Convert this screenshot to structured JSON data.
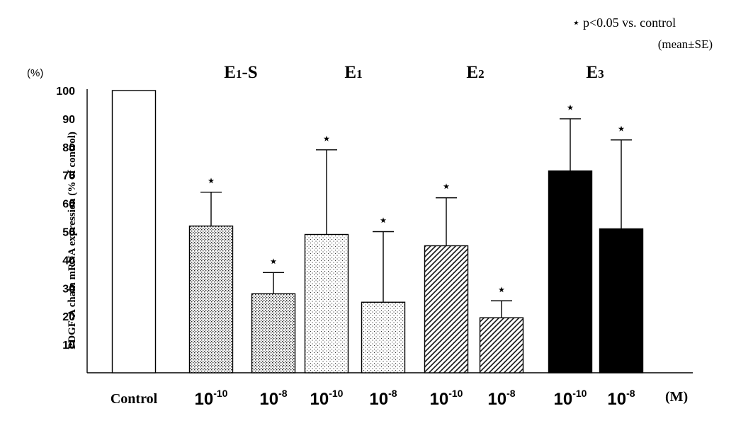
{
  "chart_data": {
    "type": "bar",
    "title": "",
    "ylabel": "PDGF-A chain mRNA expression (% of control)",
    "y_unit": "(%)",
    "x_unit": "(M)",
    "ylim": [
      0,
      100
    ],
    "yticks": [
      10,
      20,
      30,
      40,
      50,
      60,
      70,
      80,
      90,
      100
    ],
    "legend_note": "p<0.05 vs. control",
    "legend_marker": "⋆",
    "stat_note": "(mean±SE)",
    "groups": [
      {
        "name": "",
        "label": "Control",
        "bars": [
          {
            "dose": "",
            "value": 100,
            "error": 0,
            "significant": false,
            "fill": "white"
          }
        ]
      },
      {
        "name": "E1-S",
        "base": "E",
        "sub": "1",
        "suffix": "-S",
        "bars": [
          {
            "dose": "10-10",
            "base": "10",
            "exp": "-10",
            "value": 52,
            "error": 12,
            "significant": true,
            "fill": "dense-dots"
          },
          {
            "dose": "10-8",
            "base": "10",
            "exp": "-8",
            "value": 28,
            "error": 7.5,
            "significant": true,
            "fill": "dense-dots"
          }
        ]
      },
      {
        "name": "E1",
        "base": "E",
        "sub": "1",
        "suffix": "",
        "bars": [
          {
            "dose": "10-10",
            "base": "10",
            "exp": "-10",
            "value": 49,
            "error": 30,
            "significant": true,
            "fill": "sparse-dots"
          },
          {
            "dose": "10-8",
            "base": "10",
            "exp": "-8",
            "value": 25,
            "error": 25,
            "significant": true,
            "fill": "sparse-dots"
          }
        ]
      },
      {
        "name": "E2",
        "base": "E",
        "sub": "2",
        "suffix": "",
        "bars": [
          {
            "dose": "10-10",
            "base": "10",
            "exp": "-10",
            "value": 45,
            "error": 17,
            "significant": true,
            "fill": "hatch"
          },
          {
            "dose": "10-8",
            "base": "10",
            "exp": "-8",
            "value": 19.5,
            "error": 6,
            "significant": true,
            "fill": "hatch"
          }
        ]
      },
      {
        "name": "E3",
        "base": "E",
        "sub": "3",
        "suffix": "",
        "bars": [
          {
            "dose": "10-10",
            "base": "10",
            "exp": "-10",
            "value": 71.5,
            "error": 18.5,
            "significant": true,
            "fill": "black"
          },
          {
            "dose": "10-8",
            "base": "10",
            "exp": "-8",
            "value": 51,
            "error": 31.5,
            "significant": true,
            "fill": "black"
          }
        ]
      }
    ]
  }
}
